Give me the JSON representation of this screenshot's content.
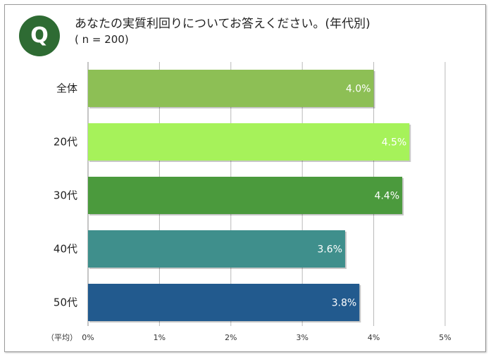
{
  "header": {
    "badge": "Q",
    "title": "あなたの実質利回りについてお答えください。(年代別)",
    "subtitle": "( n = 200)"
  },
  "chart_data": {
    "type": "bar",
    "orientation": "horizontal",
    "categories": [
      "全体",
      "20代",
      "30代",
      "40代",
      "50代"
    ],
    "values": [
      4.0,
      4.5,
      4.4,
      3.6,
      3.8
    ],
    "value_labels": [
      "4.0%",
      "4.5%",
      "4.4%",
      "3.6%",
      "3.8%"
    ],
    "colors": [
      "#8dbf55",
      "#a6f25a",
      "#4b9a3d",
      "#3f8f8c",
      "#225a8e"
    ],
    "xlim": [
      0,
      5
    ],
    "x_ticks": [
      "0%",
      "1%",
      "2%",
      "3%",
      "4%",
      "5%"
    ],
    "axis_note": "（平均）",
    "grid": true
  }
}
